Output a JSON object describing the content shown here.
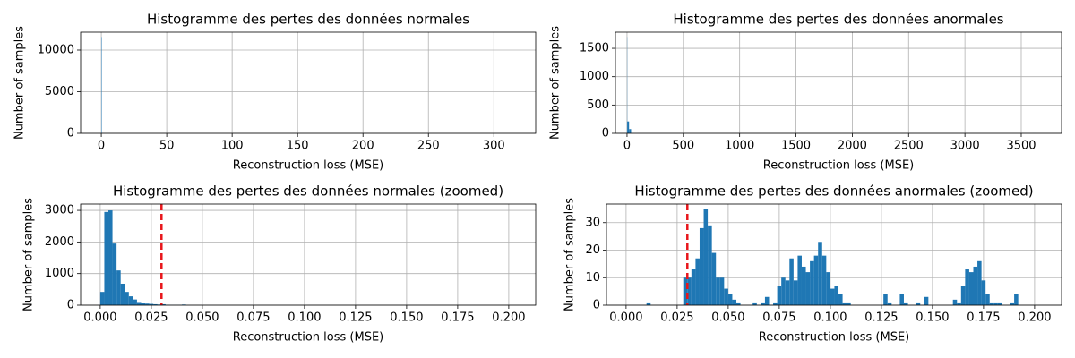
{
  "chart_data": [
    {
      "type": "histogram",
      "title": "Histogramme des pertes des données normales",
      "xlabel": "Reconstruction loss (MSE)",
      "ylabel": "Number of samples",
      "bins": [
        0,
        0.32,
        0.64,
        315.9,
        316.2
      ],
      "counts": [
        11570,
        45,
        0,
        1
      ],
      "color": "#1f77b4",
      "xlim": [
        -15.8,
        332
      ],
      "ylim": [
        0,
        12150
      ],
      "xticks": [
        0,
        50,
        100,
        150,
        200,
        250,
        300
      ],
      "yticks": [
        0,
        5000,
        10000
      ],
      "grid": true
    },
    {
      "type": "histogram",
      "title": "Histogramme des pertes des données anormales",
      "xlabel": "Reconstruction loss (MSE)",
      "ylabel": "Number of samples",
      "bins": [
        0,
        1.8,
        18,
        36,
        3600,
        3636
      ],
      "counts": [
        1700,
        210,
        75,
        0,
        1
      ],
      "color": "#1f77b4",
      "xlim": [
        -103,
        3858
      ],
      "ylim": [
        0,
        1785
      ],
      "xticks": [
        0,
        500,
        1000,
        1500,
        2000,
        2500,
        3000,
        3500
      ],
      "yticks": [
        0,
        500,
        1000,
        1500
      ],
      "grid": true
    },
    {
      "type": "histogram",
      "title": "Histogramme des pertes des données normales (zoomed)",
      "xlabel": "Reconstruction loss (MSE)",
      "ylabel": "Number of samples",
      "bins": [
        0,
        0.002,
        0.004,
        0.006,
        0.008,
        0.01,
        0.012,
        0.014,
        0.016,
        0.018,
        0.02,
        0.022,
        0.024,
        0.026,
        0.028,
        0.03,
        0.032,
        0.034,
        0.036,
        0.038,
        0.04,
        0.042,
        0.044,
        0.046,
        0.048,
        0.05,
        0.052,
        0.054,
        0.056,
        0.058,
        0.06,
        0.062,
        0.064,
        0.066,
        0.068,
        0.07,
        0.072,
        0.074,
        0.076,
        0.078,
        0.08,
        0.082,
        0.084,
        0.086,
        0.088,
        0.09,
        0.092,
        0.094,
        0.096,
        0.098,
        0.1,
        0.102,
        0.104,
        0.106,
        0.108,
        0.11,
        0.112,
        0.114,
        0.116,
        0.118,
        0.12,
        0.122,
        0.124,
        0.126,
        0.128,
        0.13,
        0.132,
        0.134,
        0.136,
        0.138,
        0.14,
        0.142,
        0.144,
        0.146,
        0.148,
        0.15,
        0.152,
        0.154,
        0.156,
        0.158,
        0.16,
        0.162,
        0.164,
        0.166,
        0.168,
        0.17,
        0.172,
        0.174,
        0.176,
        0.178,
        0.18,
        0.182,
        0.184,
        0.186,
        0.188,
        0.19,
        0.192,
        0.194,
        0.196,
        0.198,
        0.2
      ],
      "counts": [
        420,
        2950,
        3000,
        1950,
        1100,
        680,
        420,
        280,
        180,
        100,
        70,
        50,
        40,
        30,
        20,
        30,
        10,
        5,
        5,
        5,
        20,
        0,
        0,
        0,
        0,
        0,
        0,
        0,
        0,
        0,
        0,
        0,
        0,
        0,
        0,
        0,
        0,
        0,
        0,
        0,
        0,
        0,
        0,
        0,
        0,
        0,
        0,
        0,
        0,
        0,
        0,
        0,
        0,
        0,
        0,
        0,
        0,
        0,
        0,
        0,
        0,
        0,
        0,
        0,
        0,
        0,
        0,
        0,
        0,
        0,
        0,
        0,
        0,
        0,
        0,
        0,
        0,
        0,
        0,
        0,
        0,
        0,
        0,
        0,
        0,
        0,
        0,
        0,
        0,
        0,
        0,
        0,
        0,
        0,
        0,
        0,
        0,
        0,
        0,
        0
      ],
      "color": "#1f77b4",
      "vlines": [
        {
          "x": 0.03,
          "color": "#e8161b"
        }
      ],
      "xlim": [
        -0.0096,
        0.2132
      ],
      "ylim": [
        0,
        3200
      ],
      "xticks": [
        {
          "value": 0,
          "label": "0.000"
        },
        {
          "value": 0.025,
          "label": "0.025"
        },
        {
          "value": 0.05,
          "label": "0.050"
        },
        {
          "value": 0.075,
          "label": "0.075"
        },
        {
          "value": 0.1,
          "label": "0.100"
        },
        {
          "value": 0.125,
          "label": "0.125"
        },
        {
          "value": 0.15,
          "label": "0.150"
        },
        {
          "value": 0.175,
          "label": "0.175"
        },
        {
          "value": 0.2,
          "label": "0.200"
        }
      ],
      "yticks": [
        0,
        1000,
        2000,
        3000
      ],
      "grid": true
    },
    {
      "type": "histogram",
      "title": "Histogramme des pertes des données anormales (zoomed)",
      "xlabel": "Reconstruction loss (MSE)",
      "ylabel": "Number of samples",
      "bins": [
        0,
        0.002,
        0.004,
        0.006,
        0.008,
        0.01,
        0.012,
        0.014,
        0.016,
        0.018,
        0.02,
        0.022,
        0.024,
        0.026,
        0.028,
        0.03,
        0.032,
        0.034,
        0.036,
        0.038,
        0.04,
        0.042,
        0.044,
        0.046,
        0.048,
        0.05,
        0.052,
        0.054,
        0.056,
        0.058,
        0.06,
        0.062,
        0.064,
        0.066,
        0.068,
        0.07,
        0.072,
        0.074,
        0.076,
        0.078,
        0.08,
        0.082,
        0.084,
        0.086,
        0.088,
        0.09,
        0.092,
        0.094,
        0.096,
        0.098,
        0.1,
        0.102,
        0.104,
        0.106,
        0.108,
        0.11,
        0.112,
        0.114,
        0.116,
        0.118,
        0.12,
        0.122,
        0.124,
        0.126,
        0.128,
        0.13,
        0.132,
        0.134,
        0.136,
        0.138,
        0.14,
        0.142,
        0.144,
        0.146,
        0.148,
        0.15,
        0.152,
        0.154,
        0.156,
        0.158,
        0.16,
        0.162,
        0.164,
        0.166,
        0.168,
        0.17,
        0.172,
        0.174,
        0.176,
        0.178,
        0.18,
        0.182,
        0.184,
        0.186,
        0.188,
        0.19,
        0.192,
        0.194,
        0.196,
        0.198,
        0.2
      ],
      "counts": [
        0,
        0,
        0,
        0,
        0,
        1,
        0,
        0,
        0,
        0,
        0,
        0,
        0,
        0,
        10,
        10,
        13,
        17,
        28,
        35,
        29,
        19,
        10,
        10,
        6,
        4,
        2,
        1,
        0,
        0,
        0,
        1,
        0,
        1,
        3,
        0,
        1,
        7,
        10,
        9,
        17,
        9,
        18,
        14,
        12,
        16,
        18,
        23,
        18,
        12,
        6,
        7,
        4,
        1,
        1,
        0,
        0,
        0,
        0,
        0,
        0,
        0,
        0,
        4,
        1,
        0,
        0,
        4,
        1,
        0,
        0,
        1,
        0,
        3,
        0,
        0,
        0,
        0,
        0,
        0,
        2,
        1,
        7,
        13,
        12,
        14,
        16,
        9,
        4,
        1,
        1,
        1,
        0,
        0,
        1,
        4,
        0,
        0,
        0,
        0
      ],
      "color": "#1f77b4",
      "vlines": [
        {
          "x": 0.03,
          "color": "#e8161b"
        }
      ],
      "xlim": [
        -0.0096,
        0.2132
      ],
      "ylim": [
        0,
        36.75
      ],
      "xticks": [
        {
          "value": 0,
          "label": "0.000"
        },
        {
          "value": 0.025,
          "label": "0.025"
        },
        {
          "value": 0.05,
          "label": "0.050"
        },
        {
          "value": 0.075,
          "label": "0.075"
        },
        {
          "value": 0.1,
          "label": "0.100"
        },
        {
          "value": 0.125,
          "label": "0.125"
        },
        {
          "value": 0.15,
          "label": "0.150"
        },
        {
          "value": 0.175,
          "label": "0.175"
        },
        {
          "value": 0.2,
          "label": "0.200"
        }
      ],
      "yticks": [
        0,
        10,
        20,
        30
      ],
      "grid": true
    }
  ]
}
